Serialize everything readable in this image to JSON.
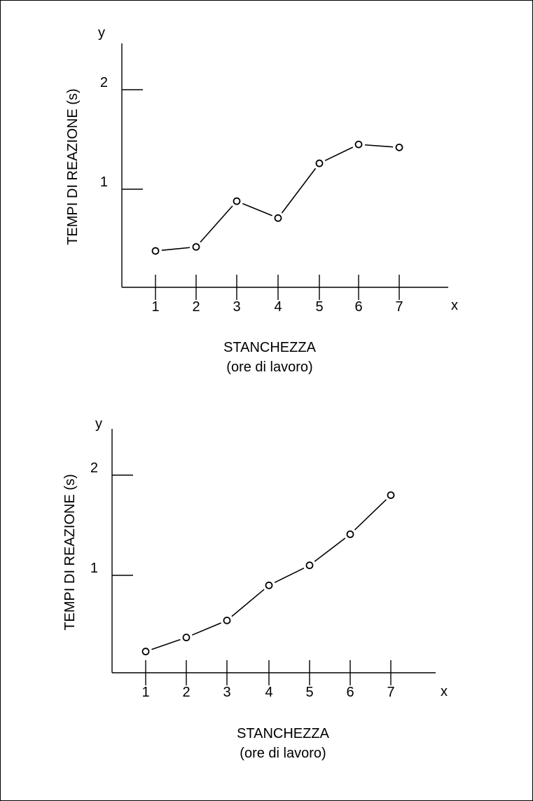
{
  "chart_data": [
    {
      "type": "line",
      "x_axis_letter": "x",
      "y_axis_letter": "y",
      "ylabel": "TEMPI DI REAZIONE (s)",
      "xlabel_line1": "STANCHEZZA",
      "xlabel_line2": "(ore di lavoro)",
      "x_ticks": [
        "1",
        "2",
        "3",
        "4",
        "5",
        "6",
        "7"
      ],
      "y_ticks": [
        "1",
        "2"
      ],
      "x": [
        1,
        2,
        3,
        4,
        5,
        6,
        7
      ],
      "y": [
        0.38,
        0.42,
        0.88,
        0.71,
        1.26,
        1.45,
        1.42
      ],
      "xlim": [
        0,
        8
      ],
      "ylim": [
        0,
        2.45
      ]
    },
    {
      "type": "line",
      "x_axis_letter": "x",
      "y_axis_letter": "y",
      "ylabel": "TEMPI DI REAZIONE (s)",
      "xlabel_line1": "STANCHEZZA",
      "xlabel_line2": "(ore di lavoro)",
      "x_ticks": [
        "1",
        "2",
        "3",
        "4",
        "5",
        "6",
        "7"
      ],
      "y_ticks": [
        "1",
        "2"
      ],
      "x": [
        1,
        2,
        3,
        4,
        5,
        6,
        7
      ],
      "y": [
        0.24,
        0.38,
        0.55,
        0.9,
        1.1,
        1.41,
        1.8
      ],
      "xlim": [
        0,
        8
      ],
      "ylim": [
        0,
        2.45
      ]
    }
  ]
}
